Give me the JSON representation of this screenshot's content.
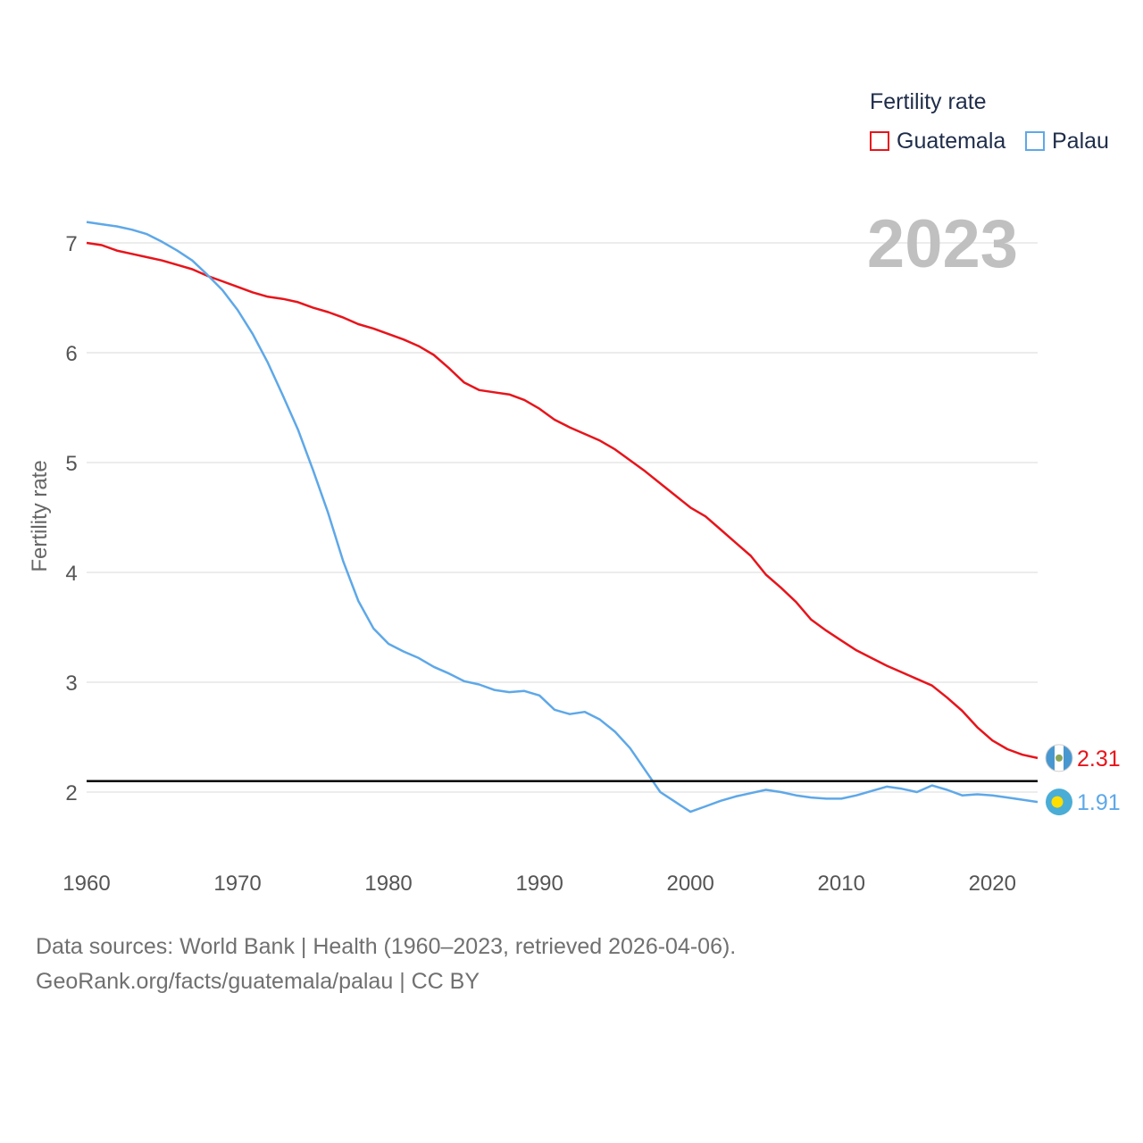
{
  "legend": {
    "title": "Fertility rate"
  },
  "sources": {
    "line1": "Data sources: World Bank | Health (1960–2023, retrieved 2026-04-06).",
    "line2": "GeoRank.org/facts/guatemala/palau | CC BY"
  },
  "chart_data": {
    "type": "line",
    "title": "2023",
    "xlabel": "",
    "ylabel": "Fertility rate",
    "xlim": [
      1960,
      2023
    ],
    "ylim": [
      1.5,
      7.3
    ],
    "x_ticks": [
      1960,
      1970,
      1980,
      1990,
      2000,
      2010,
      2020
    ],
    "y_ticks": [
      2,
      3,
      4,
      5,
      6,
      7
    ],
    "grid": true,
    "reference_line": {
      "y": 2.1
    },
    "legend_position": "top-right",
    "series": [
      {
        "name": "Guatemala",
        "color": "#e8141b",
        "end_label": "2.31",
        "flag_icon": "guatemala-flag-icon",
        "x": [
          1960,
          1961,
          1962,
          1963,
          1964,
          1965,
          1966,
          1967,
          1968,
          1969,
          1970,
          1971,
          1972,
          1973,
          1974,
          1975,
          1976,
          1977,
          1978,
          1979,
          1980,
          1981,
          1982,
          1983,
          1984,
          1985,
          1986,
          1987,
          1988,
          1989,
          1990,
          1991,
          1992,
          1993,
          1994,
          1995,
          1996,
          1997,
          1998,
          1999,
          2000,
          2001,
          2002,
          2003,
          2004,
          2005,
          2006,
          2007,
          2008,
          2009,
          2010,
          2011,
          2012,
          2013,
          2014,
          2015,
          2016,
          2017,
          2018,
          2019,
          2020,
          2021,
          2022,
          2023
        ],
        "values": [
          7.0,
          6.98,
          6.93,
          6.9,
          6.87,
          6.84,
          6.8,
          6.76,
          6.7,
          6.65,
          6.6,
          6.55,
          6.51,
          6.49,
          6.46,
          6.41,
          6.37,
          6.32,
          6.26,
          6.22,
          6.17,
          6.12,
          6.06,
          5.98,
          5.86,
          5.73,
          5.66,
          5.64,
          5.62,
          5.57,
          5.49,
          5.39,
          5.32,
          5.26,
          5.2,
          5.12,
          5.02,
          4.92,
          4.81,
          4.7,
          4.59,
          4.51,
          4.39,
          4.27,
          4.15,
          3.98,
          3.86,
          3.73,
          3.57,
          3.47,
          3.38,
          3.29,
          3.22,
          3.15,
          3.09,
          3.03,
          2.97,
          2.86,
          2.74,
          2.59,
          2.47,
          2.39,
          2.34,
          2.31
        ]
      },
      {
        "name": "Palau",
        "color": "#5ea8e8",
        "end_label": "1.91",
        "flag_icon": "palau-flag-icon",
        "x": [
          1960,
          1961,
          1962,
          1963,
          1964,
          1965,
          1966,
          1967,
          1968,
          1969,
          1970,
          1971,
          1972,
          1973,
          1974,
          1975,
          1976,
          1977,
          1978,
          1979,
          1980,
          1981,
          1982,
          1983,
          1984,
          1985,
          1986,
          1987,
          1988,
          1989,
          1990,
          1991,
          1992,
          1993,
          1994,
          1995,
          1996,
          1997,
          1998,
          1999,
          2000,
          2001,
          2002,
          2003,
          2004,
          2005,
          2006,
          2007,
          2008,
          2009,
          2010,
          2011,
          2012,
          2013,
          2014,
          2015,
          2016,
          2017,
          2018,
          2019,
          2020,
          2021,
          2022,
          2023
        ],
        "values": [
          7.19,
          7.17,
          7.15,
          7.12,
          7.08,
          7.01,
          6.93,
          6.84,
          6.71,
          6.57,
          6.39,
          6.17,
          5.91,
          5.61,
          5.3,
          4.93,
          4.54,
          4.1,
          3.74,
          3.49,
          3.35,
          3.28,
          3.22,
          3.14,
          3.08,
          3.01,
          2.98,
          2.93,
          2.91,
          2.92,
          2.88,
          2.75,
          2.71,
          2.73,
          2.66,
          2.55,
          2.4,
          2.2,
          2.0,
          1.91,
          1.82,
          1.87,
          1.92,
          1.96,
          1.99,
          2.02,
          2.0,
          1.97,
          1.95,
          1.94,
          1.94,
          1.97,
          2.01,
          2.05,
          2.03,
          2.0,
          2.06,
          2.02,
          1.97,
          1.98,
          1.97,
          1.95,
          1.93,
          1.91
        ]
      }
    ]
  }
}
